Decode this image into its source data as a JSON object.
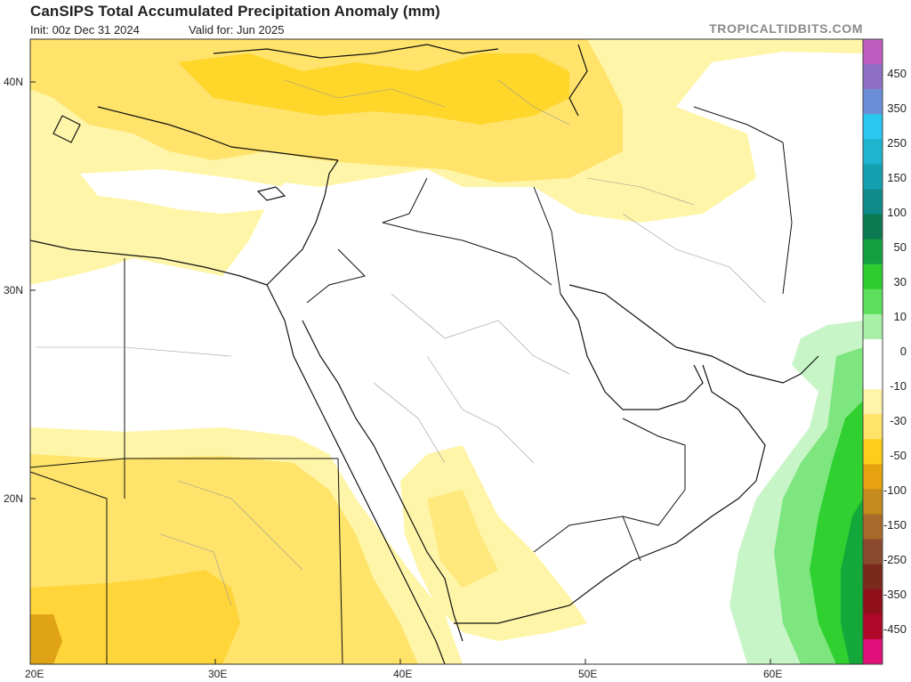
{
  "title": "CanSIPS Total Accumulated Precipitation Anomaly (mm)",
  "init_text": "Init: 00z Dec 31 2024",
  "valid_text": "Valid for: Jun 2025",
  "brand": "TROPICALTIDBITS.COM",
  "lat_labels": [
    "40N",
    "30N",
    "20N"
  ],
  "lon_labels": [
    "20E",
    "30E",
    "40E",
    "50E",
    "60E"
  ],
  "colorbar": {
    "levels": [
      "450",
      "350",
      "250",
      "150",
      "100",
      "50",
      "30",
      "10",
      "0",
      "-10",
      "-30",
      "-50",
      "-100",
      "-150",
      "-250",
      "-350",
      "-450"
    ],
    "colors": [
      "#c05cc0",
      "#8e6fc4",
      "#6a8fd8",
      "#29c8f0",
      "#1eb4d0",
      "#15a0b0",
      "#0f8a8a",
      "#0c7a50",
      "#14a040",
      "#2fcc2f",
      "#5de05d",
      "#a8f0a8",
      "#ffffff",
      "#ffffff",
      "#fff5a8",
      "#ffe36a",
      "#ffcc1a",
      "#e6a20f",
      "#c48a1e",
      "#a86a2a",
      "#8a4a30",
      "#7a2a1a",
      "#90101a",
      "#b00828",
      "#e0107a"
    ]
  },
  "map": {
    "region": "Middle East / Arabian Peninsula",
    "anomaly_fields": [
      "dry anomaly north (Turkey/Caucasus)",
      "dry anomaly west (Egypt/Sudan)",
      "wet anomaly Arabian Sea"
    ]
  }
}
